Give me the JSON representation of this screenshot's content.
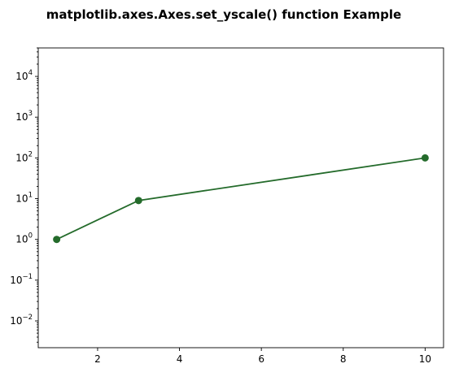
{
  "chart_data": {
    "type": "line",
    "title": "matplotlib.axes.Axes.set_yscale() function Example",
    "xlabel": "",
    "ylabel": "",
    "yscale": "log",
    "xlim": [
      0.55,
      10.45
    ],
    "ylim": [
      0.0022,
      50000
    ],
    "x_ticks": [
      2,
      4,
      6,
      8,
      10
    ],
    "x_tick_labels": [
      "2",
      "4",
      "6",
      "8",
      "10"
    ],
    "y_ticks": [
      {
        "value": 0.01,
        "base": "10",
        "exp": "−2"
      },
      {
        "value": 0.1,
        "base": "10",
        "exp": "−1"
      },
      {
        "value": 1,
        "base": "10",
        "exp": "0"
      },
      {
        "value": 10,
        "base": "10",
        "exp": "1"
      },
      {
        "value": 100,
        "base": "10",
        "exp": "2"
      },
      {
        "value": 1000,
        "base": "10",
        "exp": "3"
      },
      {
        "value": 10000,
        "base": "10",
        "exp": "4"
      }
    ],
    "grid": false,
    "series": [
      {
        "color": "#246b2b",
        "marker": "circle",
        "x": [
          1,
          3,
          10
        ],
        "y": [
          1,
          9,
          100
        ]
      }
    ]
  }
}
